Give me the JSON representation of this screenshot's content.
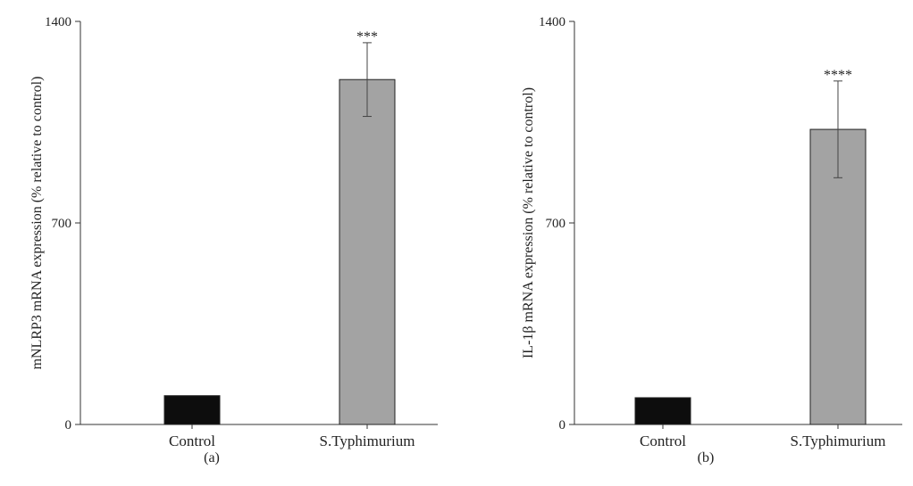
{
  "chart_data": [
    {
      "type": "bar",
      "panel_label": "(a)",
      "ylabel": "mNLRP3 mRNA expression (% relative to control)",
      "ylim": [
        0,
        1400
      ],
      "yticks": [
        "0",
        "700",
        "1400"
      ],
      "ytick_values": [
        0,
        700,
        1400
      ],
      "categories": [
        "Control",
        "S.Typhimurium"
      ],
      "values": [
        100,
        1198
      ],
      "errors": [
        0,
        128
      ],
      "significance": [
        "",
        "***"
      ],
      "colors": [
        "#0d0d0d",
        "#a3a3a3"
      ]
    },
    {
      "type": "bar",
      "panel_label": "(b)",
      "ylabel": "IL-1β mRNA expression (% relative to control)",
      "ylim": [
        0,
        1400
      ],
      "yticks": [
        "0",
        "700",
        "1400"
      ],
      "ytick_values": [
        0,
        700,
        1400
      ],
      "categories": [
        "Control",
        "S.Typhimurium"
      ],
      "values": [
        93,
        1025
      ],
      "errors": [
        0,
        168
      ],
      "significance": [
        "",
        "****"
      ],
      "colors": [
        "#0d0d0d",
        "#a3a3a3"
      ]
    }
  ]
}
